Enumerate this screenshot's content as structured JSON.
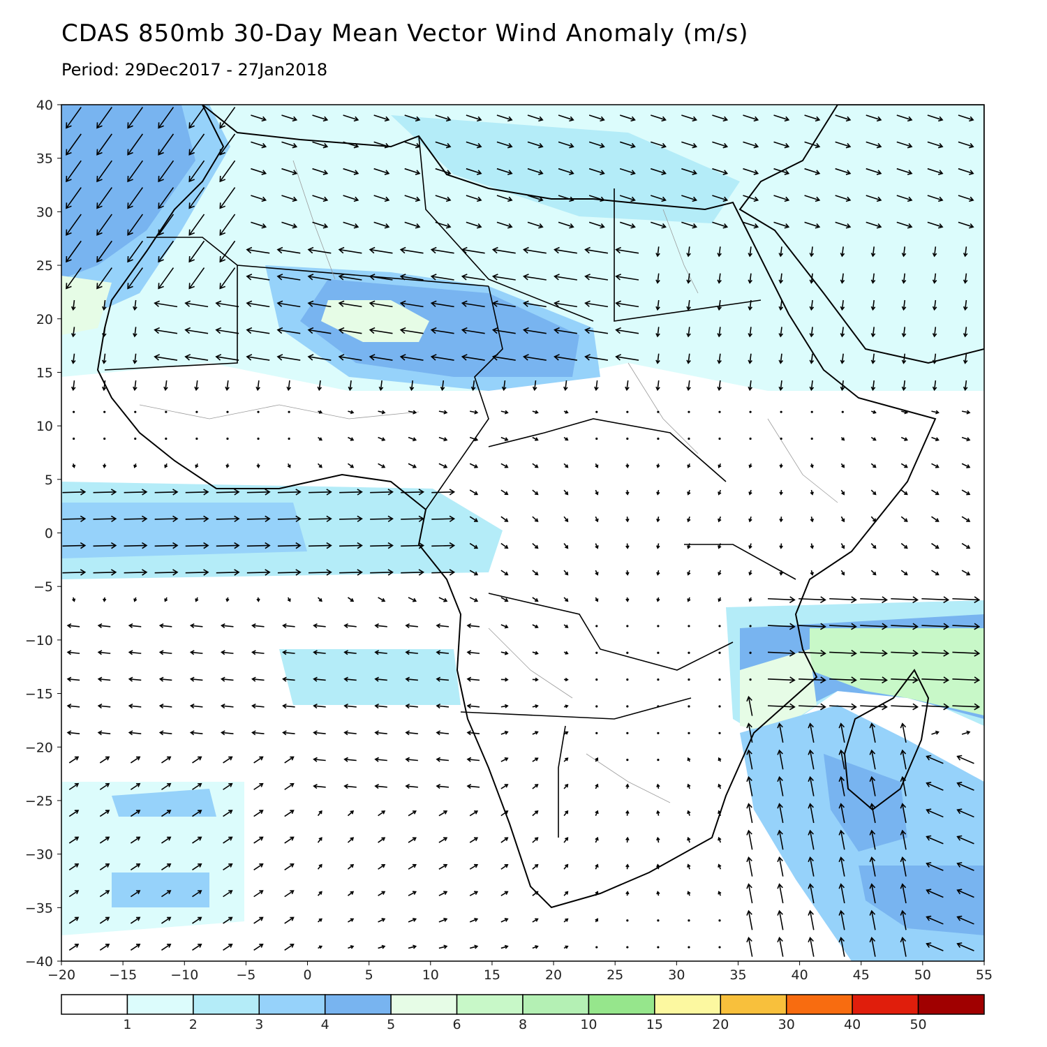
{
  "title": "CDAS 850mb 30-Day Mean Vector Wind Anomaly (m/s)",
  "subtitle": "Period: 29Dec2017 - 27Jan2018",
  "axes": {
    "lon_ticks": [
      "-20",
      "-15",
      "-10",
      "-5",
      "0",
      "5",
      "10",
      "15",
      "20",
      "25",
      "30",
      "35",
      "40",
      "45",
      "50",
      "55"
    ],
    "lat_ticks": [
      "40",
      "35",
      "30",
      "25",
      "20",
      "15",
      "10",
      "5",
      "0",
      "-5",
      "-10",
      "-15",
      "-20",
      "-25",
      "-30",
      "-35",
      "-40"
    ],
    "lon_range": [
      -20,
      55
    ],
    "lat_range": [
      -40,
      40
    ]
  },
  "colorbar": {
    "labels": [
      "1",
      "2",
      "3",
      "4",
      "5",
      "6",
      "8",
      "10",
      "15",
      "20",
      "30",
      "40",
      "50"
    ],
    "colors": [
      "#ffffff",
      "#dcfcfc",
      "#b4ecf8",
      "#96d2fa",
      "#78b4f0",
      "#e6fce6",
      "#c8f8c8",
      "#b4f0b4",
      "#96e68c",
      "#fcf8a0",
      "#f8c03c",
      "#f86c10",
      "#e01e0c",
      "#a00000"
    ]
  },
  "palette": {
    "land_border": "#000000",
    "admin_border": "#9a9a9a",
    "arrow": "#000000"
  }
}
